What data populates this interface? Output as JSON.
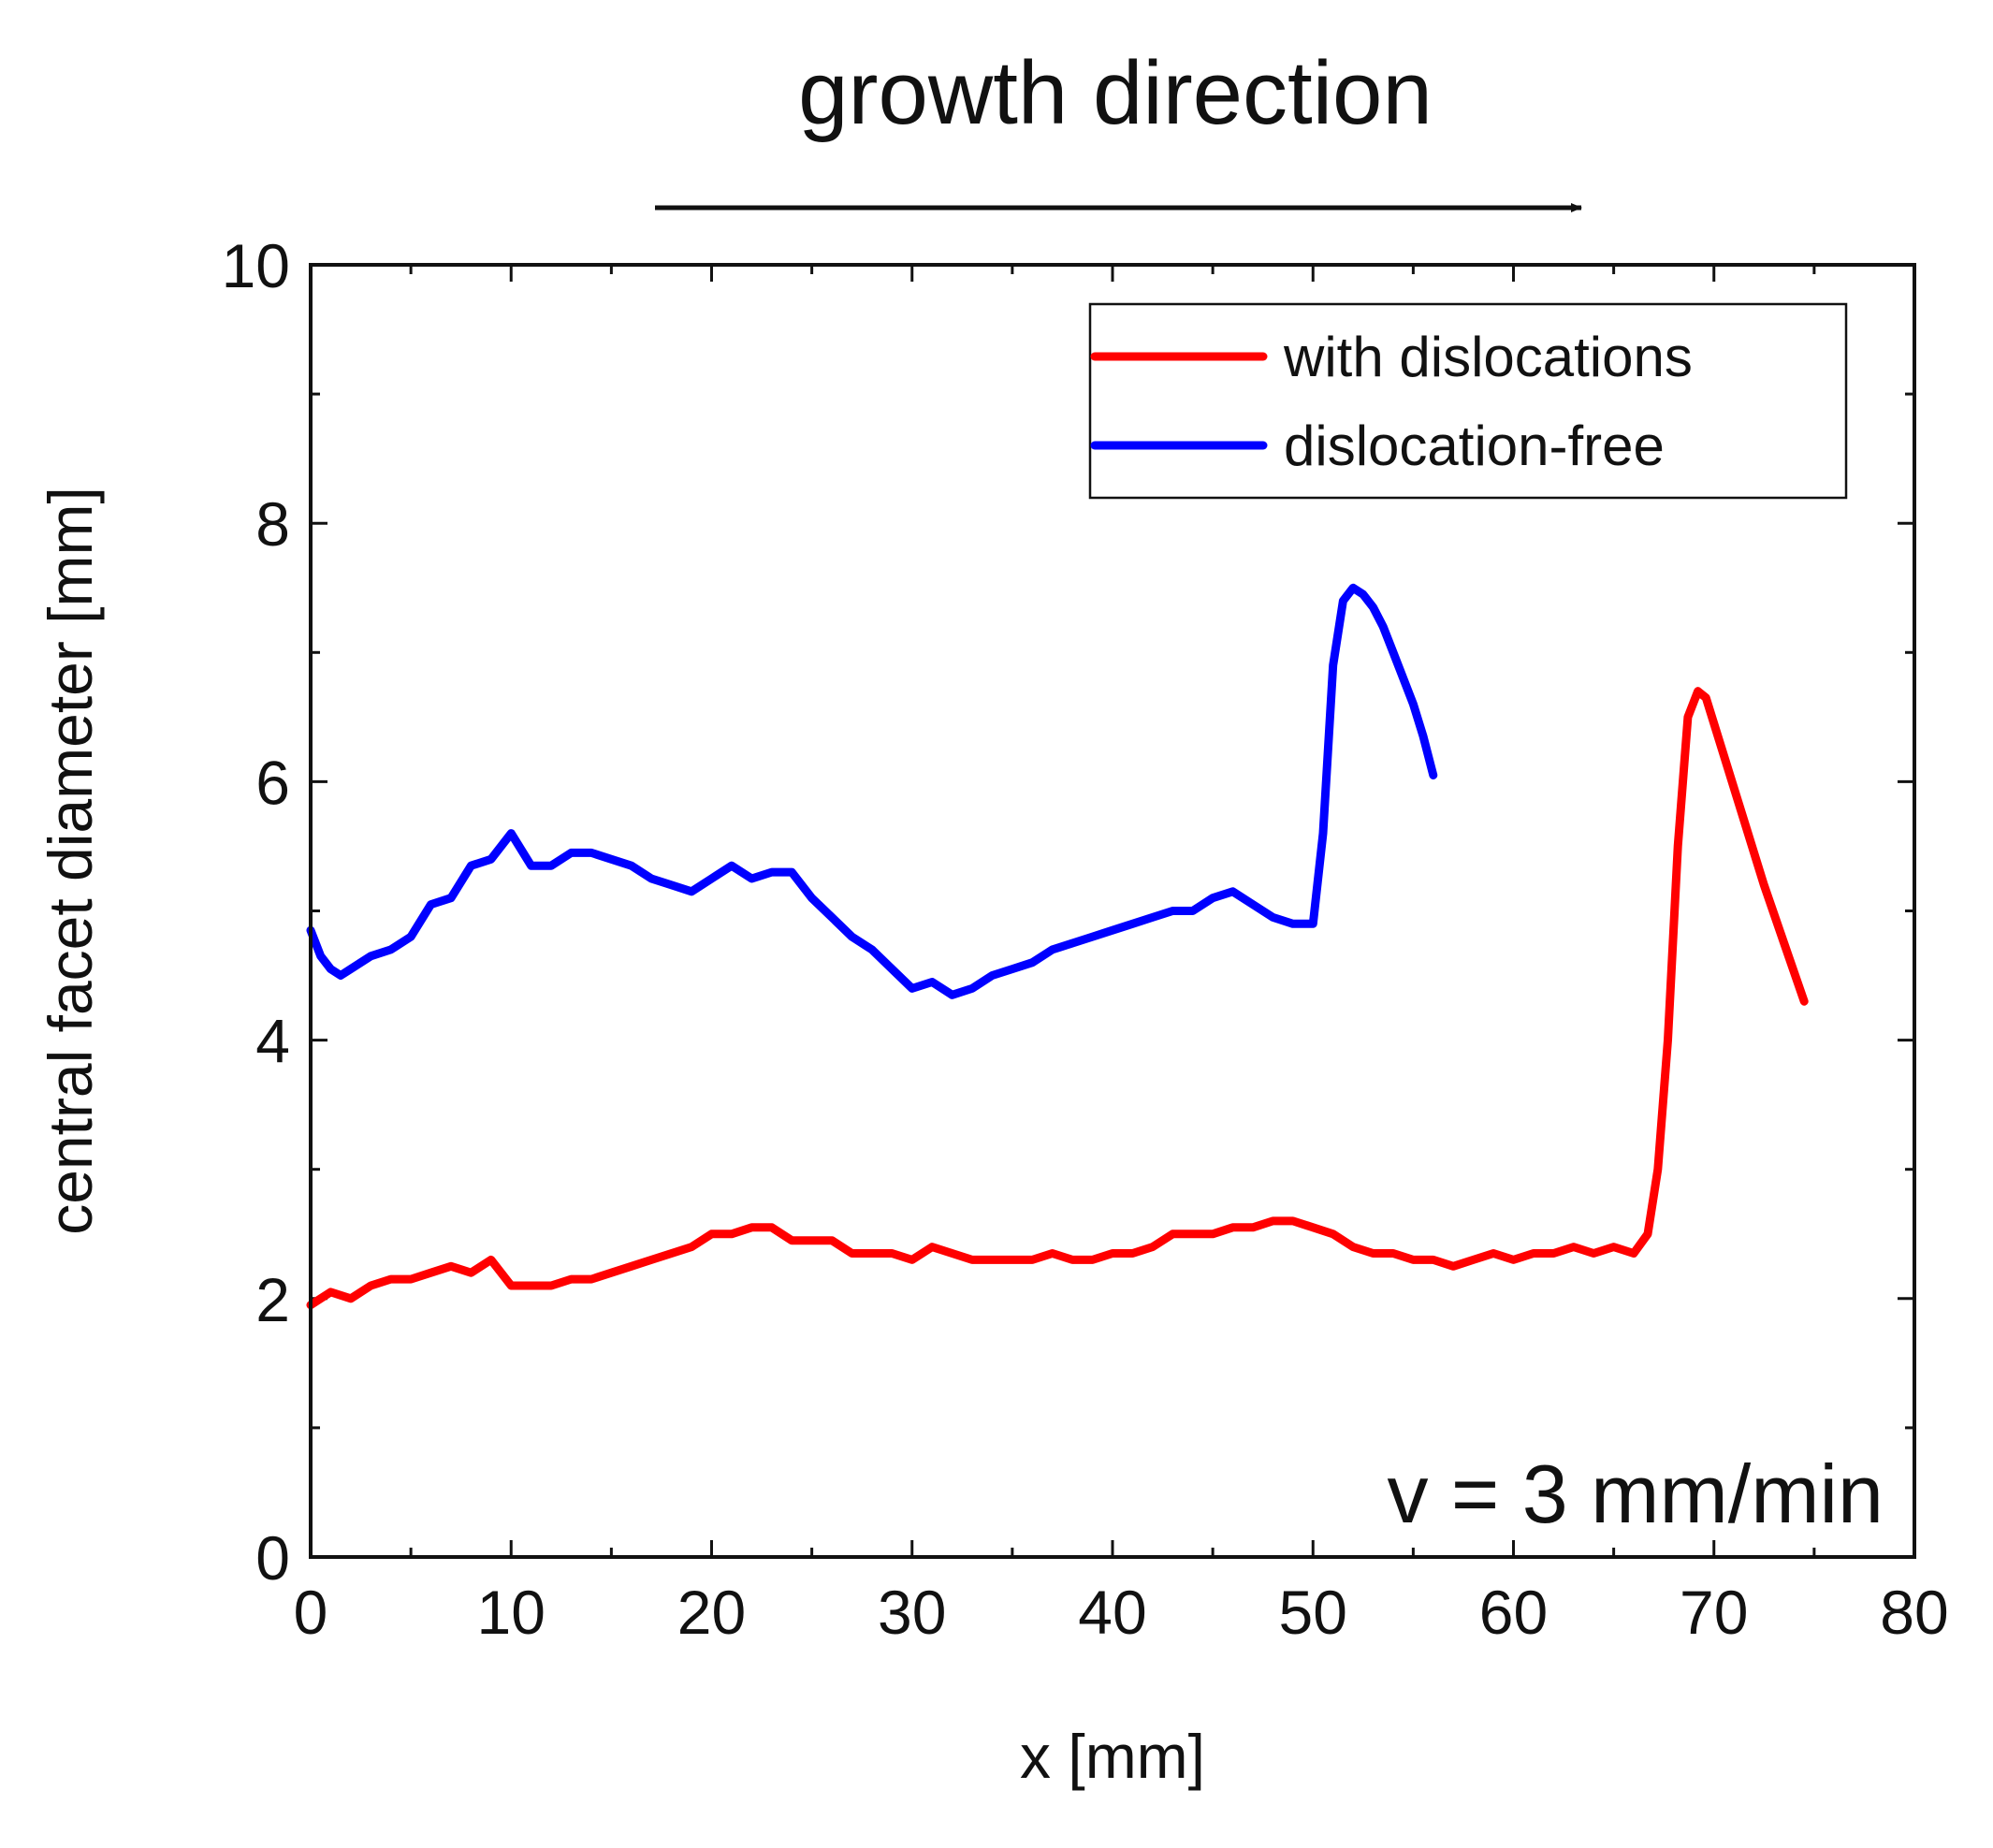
{
  "chart_data": {
    "type": "line",
    "title": "growth direction",
    "xlabel": "x [mm]",
    "ylabel": "central facet diameter [mm]",
    "xlim": [
      0,
      80
    ],
    "ylim": [
      0,
      10
    ],
    "xticks": [
      0,
      10,
      20,
      30,
      40,
      50,
      60,
      70,
      80
    ],
    "yticks": [
      0,
      2,
      4,
      6,
      8,
      10
    ],
    "xtick_labels": [
      "0",
      "10",
      "20",
      "30",
      "40",
      "50",
      "60",
      "70",
      "80"
    ],
    "ytick_labels": [
      "0",
      "2",
      "4",
      "6",
      "8",
      "10"
    ],
    "annotation": "v = 3 mm/min",
    "legend_position": "top-right",
    "grid": false,
    "series": [
      {
        "name": "with dislocations",
        "color": "#ff0000",
        "x": [
          0,
          1,
          2,
          3,
          4,
          5,
          6,
          7,
          8,
          9,
          10,
          11,
          12,
          13,
          14,
          15,
          16,
          17,
          18,
          19,
          20,
          21,
          22,
          23,
          24,
          25,
          26,
          27,
          28,
          29,
          30,
          31,
          32,
          33,
          34,
          35,
          36,
          37,
          38,
          39,
          40,
          41,
          42,
          43,
          44,
          45,
          46,
          47,
          48,
          49,
          50,
          51,
          52,
          53,
          54,
          55,
          56,
          57,
          58,
          59,
          60,
          61,
          62,
          63,
          64,
          65,
          66,
          66.7,
          67.2,
          67.7,
          68.2,
          68.7,
          69.2,
          69.6,
          70.5,
          71.5,
          72.5,
          73.5,
          74.5
        ],
        "y": [
          1.95,
          2.05,
          2.0,
          2.1,
          2.15,
          2.15,
          2.2,
          2.25,
          2.2,
          2.3,
          2.1,
          2.1,
          2.1,
          2.15,
          2.15,
          2.2,
          2.25,
          2.3,
          2.35,
          2.4,
          2.5,
          2.5,
          2.55,
          2.55,
          2.45,
          2.45,
          2.45,
          2.35,
          2.35,
          2.35,
          2.3,
          2.4,
          2.35,
          2.3,
          2.3,
          2.3,
          2.3,
          2.35,
          2.3,
          2.3,
          2.35,
          2.35,
          2.4,
          2.5,
          2.5,
          2.5,
          2.55,
          2.55,
          2.6,
          2.6,
          2.55,
          2.5,
          2.4,
          2.35,
          2.35,
          2.3,
          2.3,
          2.25,
          2.3,
          2.35,
          2.3,
          2.35,
          2.35,
          2.4,
          2.35,
          2.4,
          2.35,
          2.5,
          3.0,
          4.0,
          5.5,
          6.5,
          6.7,
          6.65,
          6.2,
          5.7,
          5.2,
          4.75,
          4.3
        ]
      },
      {
        "name": "dislocation-free",
        "color": "#0000ff",
        "x": [
          0,
          0.5,
          1,
          1.5,
          2,
          3,
          4,
          5,
          6,
          7,
          8,
          9,
          10,
          11,
          12,
          13,
          14,
          15,
          16,
          17,
          18,
          19,
          20,
          21,
          22,
          23,
          24,
          25,
          26,
          27,
          28,
          29,
          30,
          31,
          32,
          33,
          34,
          35,
          36,
          37,
          38,
          39,
          40,
          41,
          42,
          43,
          44,
          45,
          46,
          47,
          48,
          49,
          50,
          50.5,
          51,
          51.5,
          52,
          52.5,
          53,
          53.5,
          54,
          54.5,
          55,
          55.5,
          56
        ],
        "y": [
          4.85,
          4.65,
          4.55,
          4.5,
          4.55,
          4.65,
          4.7,
          4.8,
          5.05,
          5.1,
          5.35,
          5.4,
          5.6,
          5.35,
          5.35,
          5.45,
          5.45,
          5.4,
          5.35,
          5.25,
          5.2,
          5.15,
          5.25,
          5.35,
          5.25,
          5.3,
          5.3,
          5.1,
          4.95,
          4.8,
          4.7,
          4.55,
          4.4,
          4.45,
          4.35,
          4.4,
          4.5,
          4.55,
          4.6,
          4.7,
          4.75,
          4.8,
          4.85,
          4.9,
          4.95,
          5.0,
          5.0,
          5.1,
          5.15,
          5.05,
          4.95,
          4.9,
          4.9,
          5.6,
          6.9,
          7.4,
          7.5,
          7.45,
          7.35,
          7.2,
          7.0,
          6.8,
          6.6,
          6.35,
          6.05
        ]
      }
    ]
  }
}
